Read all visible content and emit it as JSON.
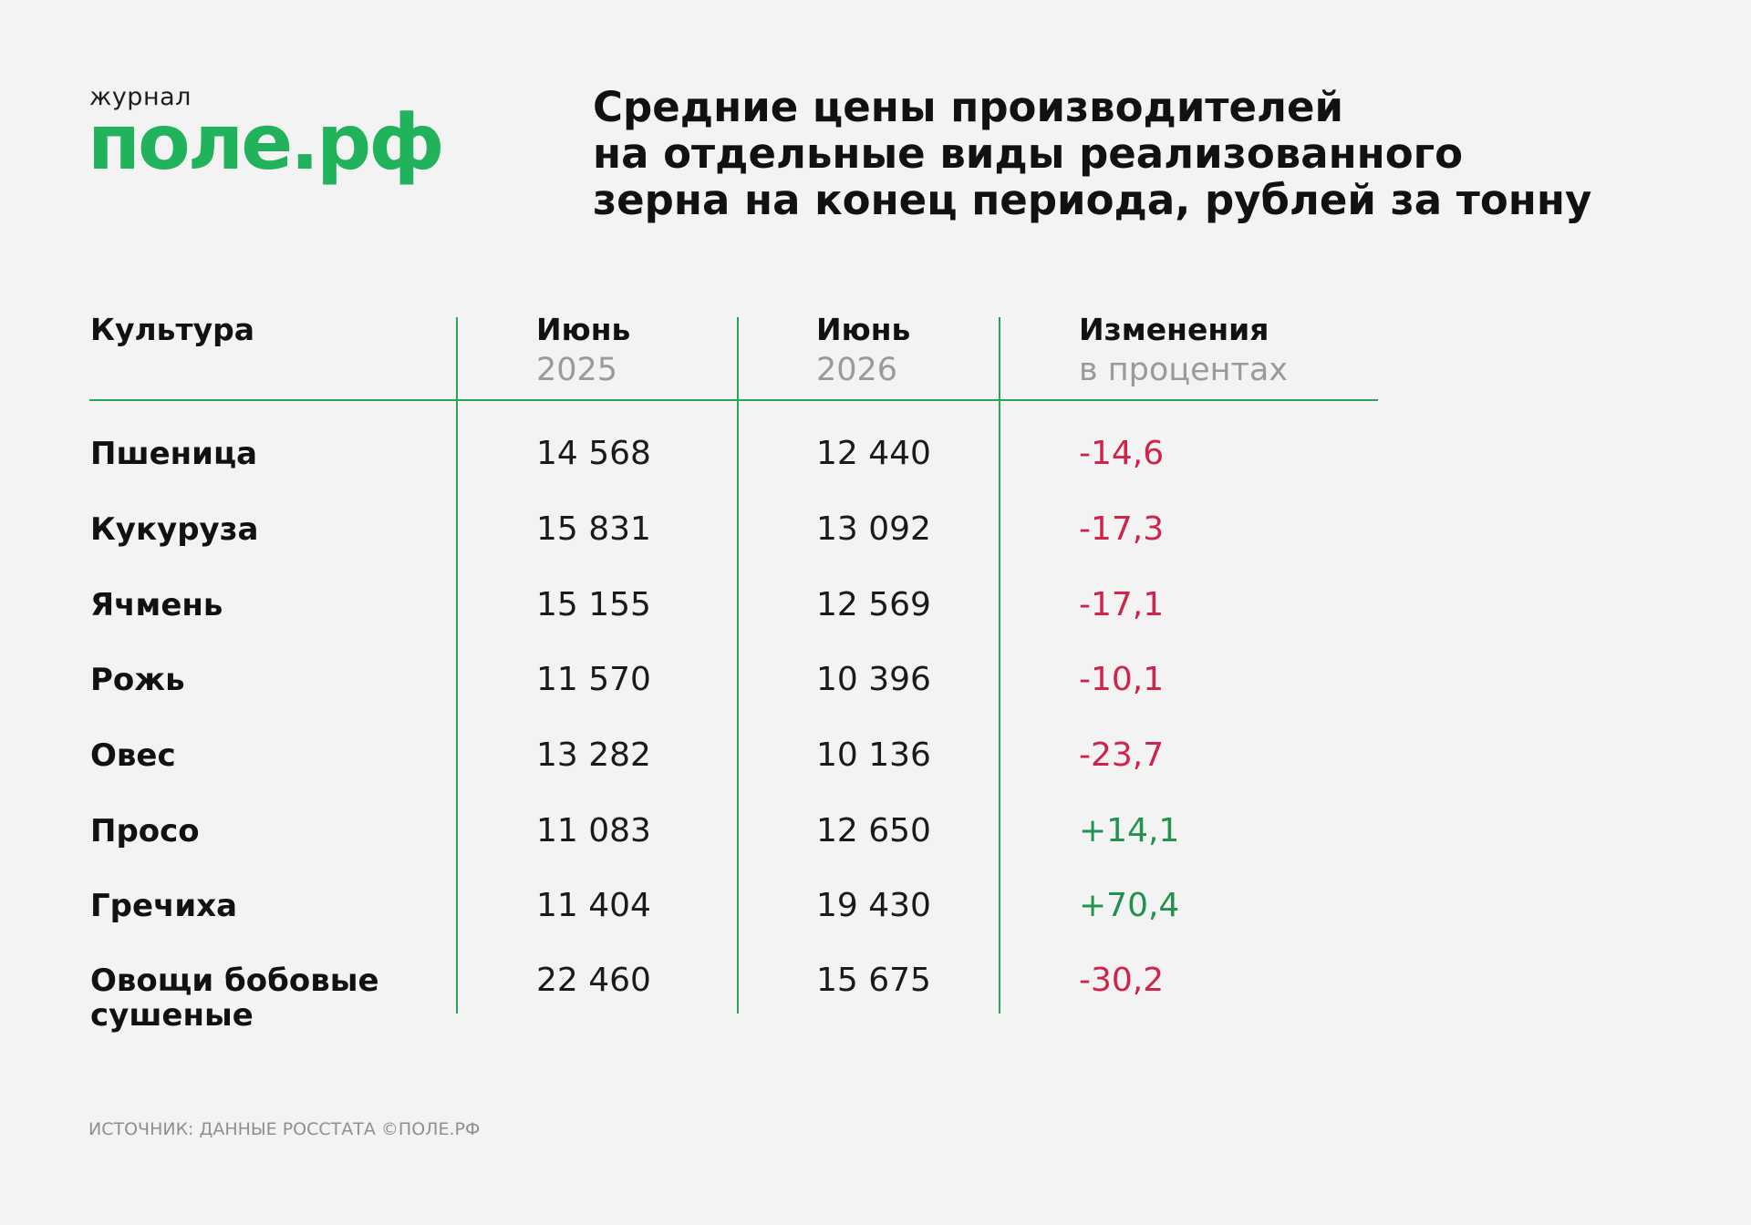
{
  "logo": {
    "small": "журнал",
    "main": "поле.рф"
  },
  "title_lines": [
    "Средние цены производителей",
    "на отдельные виды реализованного",
    "зерна на конец периода, рублей за тонну"
  ],
  "source": "ИСТОЧНИК: ДАННЫЕ РОССТАТА ©ПОЛЕ.РФ",
  "colors": {
    "background": "#f3f3f3",
    "brand_green": "#20b35b",
    "rule_green": "#2aa258",
    "negative_red": "#d1234a",
    "positive_green": "#22924f"
  },
  "chart_data": {
    "type": "table",
    "title": "Средние цены производителей на отдельные виды реализованного зерна на конец периода, рублей за тонну",
    "columns": [
      {
        "main": "Культура",
        "sub": ""
      },
      {
        "main": "Июнь",
        "sub": "2025"
      },
      {
        "main": "Июнь",
        "sub": "2026"
      },
      {
        "main": "Изменения",
        "sub": "в процентах"
      }
    ],
    "rows": [
      {
        "crop": "Пшеница",
        "v2025": "14 568",
        "v2026": "12 440",
        "change": "-14,6"
      },
      {
        "crop": "Кукуруза",
        "v2025": "15 831",
        "v2026": "13 092",
        "change": "-17,3"
      },
      {
        "crop": "Ячмень",
        "v2025": "15 155",
        "v2026": "12 569",
        "change": "-17,1"
      },
      {
        "crop": "Рожь",
        "v2025": "11 570",
        "v2026": "10 396",
        "change": "-10,1"
      },
      {
        "crop": "Овес",
        "v2025": "13 282",
        "v2026": "10 136",
        "change": "-23,7"
      },
      {
        "crop": "Просо",
        "v2025": "11 083",
        "v2026": "12 650",
        "change": "+14,1"
      },
      {
        "crop": "Гречиха",
        "v2025": "11 404",
        "v2026": "19 430",
        "change": "+70,4"
      },
      {
        "crop": "Овощи бобовые сушеные",
        "v2025": "22 460",
        "v2026": "15 675",
        "change": "-30,2"
      }
    ]
  }
}
